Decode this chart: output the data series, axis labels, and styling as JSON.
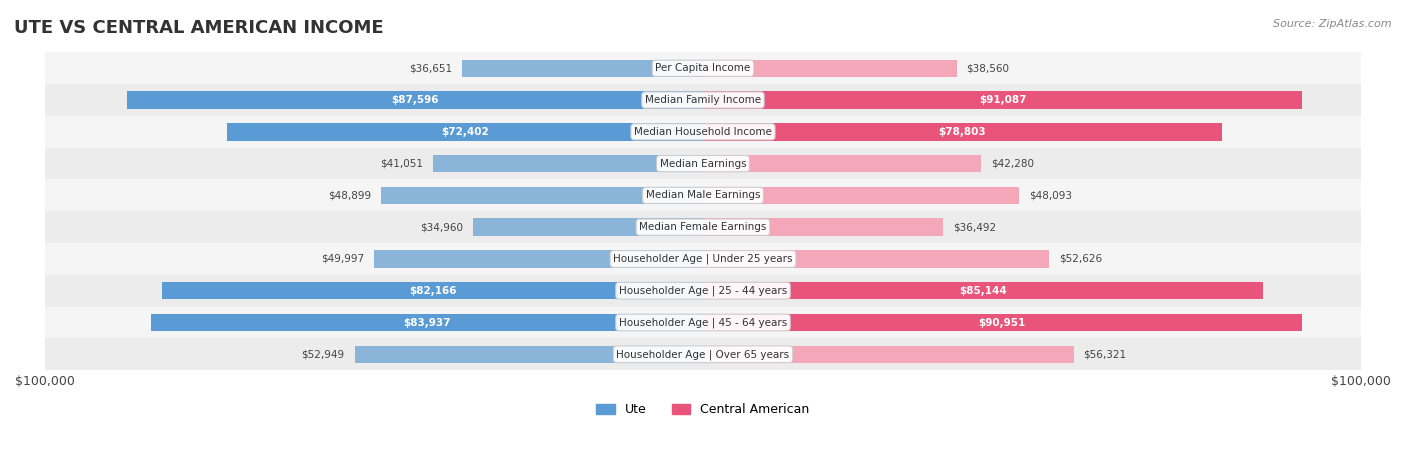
{
  "title": "UTE VS CENTRAL AMERICAN INCOME",
  "source": "Source: ZipAtlas.com",
  "categories": [
    "Per Capita Income",
    "Median Family Income",
    "Median Household Income",
    "Median Earnings",
    "Median Male Earnings",
    "Median Female Earnings",
    "Householder Age | Under 25 years",
    "Householder Age | 25 - 44 years",
    "Householder Age | 45 - 64 years",
    "Householder Age | Over 65 years"
  ],
  "ute_values": [
    36651,
    87596,
    72402,
    41051,
    48899,
    34960,
    49997,
    82166,
    83937,
    52949
  ],
  "central_values": [
    38560,
    91087,
    78803,
    42280,
    48093,
    36492,
    52626,
    85144,
    90951,
    56321
  ],
  "ute_labels": [
    "$36,651",
    "$87,596",
    "$72,402",
    "$41,051",
    "$48,899",
    "$34,960",
    "$49,997",
    "$82,166",
    "$83,937",
    "$52,949"
  ],
  "central_labels": [
    "$38,560",
    "$91,087",
    "$78,803",
    "$42,280",
    "$48,093",
    "$36,492",
    "$52,626",
    "$85,144",
    "$90,951",
    "$56,321"
  ],
  "ute_color": "#8ab4d8",
  "ute_color_dark": "#5b9bd5",
  "central_color": "#f4a7b9",
  "central_color_dark": "#e8547a",
  "max_val": 100000,
  "row_bg_light": "#f5f5f5",
  "row_bg_dark": "#e8e8e8",
  "label_threshold": 60000
}
